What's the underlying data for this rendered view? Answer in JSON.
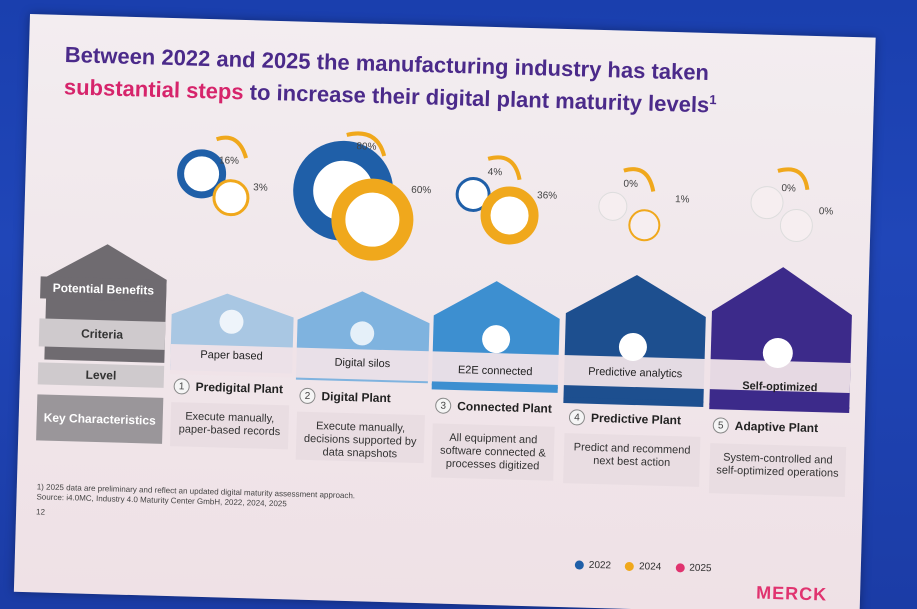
{
  "title": {
    "line1": "Between 2022 and 2025 the manufacturing industry has taken",
    "line2_highlight": "substantial steps",
    "line2_rest": " to increase their digital plant maturity levels",
    "sup": "1"
  },
  "left_labels": {
    "benefits": "Potential Benefits",
    "criteria": "Criteria",
    "level": "Level",
    "key": "Key Characteristics"
  },
  "stages": [
    {
      "num": "1",
      "criteria": "Paper based",
      "level": "Predigital Plant",
      "key": "Execute manually, paper-based records",
      "pct2022": "16%",
      "pct2024": "3%",
      "icon": "monitor-icon"
    },
    {
      "num": "2",
      "criteria": "Digital silos",
      "level": "Digital Plant",
      "key": "Execute manually, decisions supported by data snapshots",
      "pct2022": "80%",
      "pct2024": "60%",
      "icon": "org-chart-icon"
    },
    {
      "num": "3",
      "criteria": "E2E connected",
      "level": "Connected Plant",
      "key": "All equipment and software connected & processes digitized",
      "pct2022": "4%",
      "pct2024": "36%",
      "icon": "magnifier-icon"
    },
    {
      "num": "4",
      "criteria": "Predictive analytics",
      "level": "Predictive Plant",
      "key": "Predict and recommend next best action",
      "pct2022": "0%",
      "pct2024": "1%",
      "icon": "head-gear-icon"
    },
    {
      "num": "5",
      "criteria": "Self-optimized",
      "level": "Adaptive Plant",
      "key": "System-controlled and self-optimized operations",
      "pct2022": "0%",
      "pct2024": "0%",
      "icon": "trend-chart-icon"
    }
  ],
  "footnote": {
    "line1": "1) 2025 data are preliminary and reflect an updated digital maturity assessment approach.",
    "line2": "Source: i4.0MC, Industry 4.0 Maturity Center GmbH, 2022, 2024, 2025"
  },
  "page_number": "12",
  "legend": [
    {
      "label": "2022",
      "color": "#1f5fa8"
    },
    {
      "label": "2024",
      "color": "#f0a81c"
    },
    {
      "label": "2025",
      "color": "#e0336f"
    }
  ],
  "logo": "MERCK",
  "colors": {
    "house1": "#a9c7e3",
    "house2": "#7fb3df",
    "house3": "#3d8fd0",
    "house4": "#1d4f8f",
    "house5": "#3c2a8a",
    "blue2022": "#1f5fa8",
    "orange2024": "#f0a81c"
  }
}
